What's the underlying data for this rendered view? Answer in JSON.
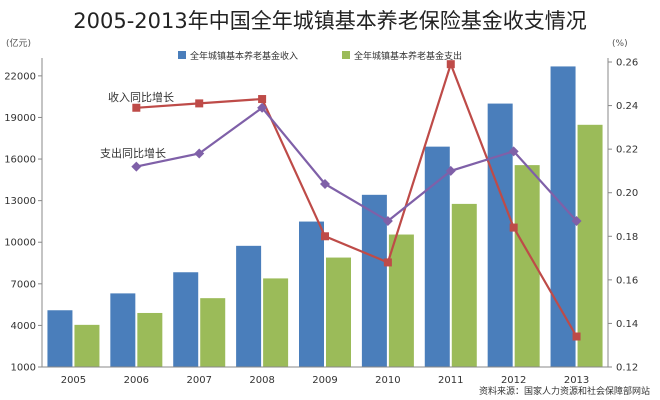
{
  "chart_data": {
    "type": "bar",
    "title": "2005-2013年中国全年城镇基本养老保险基金收支情况",
    "left_unit": "(亿元)",
    "right_unit": "(%)",
    "categories": [
      "2005",
      "2006",
      "2007",
      "2008",
      "2009",
      "2010",
      "2011",
      "2012",
      "2013"
    ],
    "y_left": {
      "ylim": [
        1000,
        23000
      ],
      "ticks": [
        1000,
        4000,
        7000,
        10000,
        13000,
        16000,
        19000,
        22000
      ]
    },
    "y_right": {
      "ylim": [
        0.12,
        0.26
      ],
      "ticks": [
        0.12,
        0.14,
        0.16,
        0.18,
        0.2,
        0.22,
        0.24,
        0.26
      ]
    },
    "bar_series": [
      {
        "name": "全年城镇基本养老基金收入",
        "color": "#4a7ebb",
        "values": [
          5093,
          6310,
          7834,
          9740,
          11491,
          13420,
          16895,
          20001,
          22680
        ]
      },
      {
        "name": "全年城镇基本养老基金支出",
        "color": "#9bbb59",
        "values": [
          4040,
          4897,
          5965,
          7390,
          8894,
          10555,
          12765,
          15562,
          18470
        ]
      }
    ],
    "line_series": [
      {
        "name": "收入同比增长",
        "color": "#be4b48",
        "marker": "square",
        "start_index": 1,
        "values": [
          0.239,
          0.241,
          0.243,
          0.18,
          0.168,
          0.259,
          0.184,
          0.134
        ]
      },
      {
        "name": "支出同比增长",
        "color": "#7f60a8",
        "marker": "diamond",
        "start_index": 1,
        "values": [
          0.212,
          0.218,
          0.239,
          0.204,
          0.187,
          0.21,
          0.219,
          0.187
        ]
      }
    ],
    "source": "资料来源：国家人力资源和社会保障部网站",
    "grid": false,
    "legend": "top"
  }
}
